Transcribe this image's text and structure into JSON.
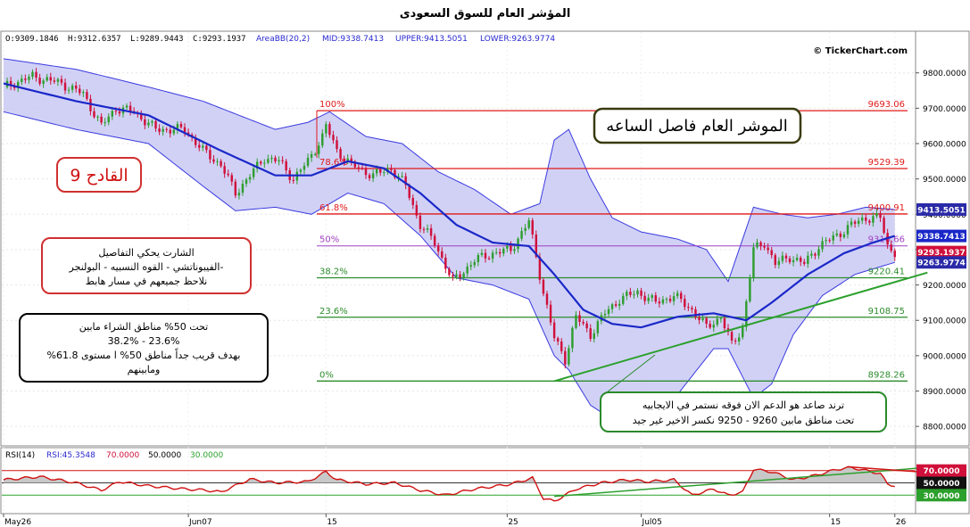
{
  "page": {
    "title": "المؤشر العام للسوق السعودى",
    "watermark": "© TickerChart.com"
  },
  "info": {
    "o": "O:9309.1846",
    "h": "H:9312.6357",
    "l": "L:9289.9443",
    "c": "C:9293.1937",
    "bb_label": "AreaBB(20,2)",
    "mid": "MID:9338.7413",
    "upper": "UPPER:9413.5051",
    "lower": "LOWER:9263.9774"
  },
  "rsi_info": {
    "label": "RSI(14)",
    "value": "RSI:45.3548",
    "l70": "70.0000",
    "l50": "50.0000",
    "l30": "30.0000"
  },
  "colors": {
    "up": "#2e9e2e",
    "down": "#d0103a",
    "band_fill": "#c9c9f5",
    "band_line": "#3a3ae0",
    "mid_line": "#1a28c8",
    "fib_red": "#e01a1a",
    "fib_purple": "#a040c0",
    "fib_green": "#2c8c2c",
    "trend": "#2ca02c",
    "rsi_line": "#d01010",
    "rsi_fill": "#c8c8c8"
  },
  "annotations": {
    "box_title": "الموشر العام فاصل الساعه",
    "qadeh": "القادح 9",
    "note1": [
      "الشارت يحكي التفاصيل",
      "-الفيبوناتشي - القوه النسبيه - البولنجر",
      "نلاحظ جميعهم في مسار هابط"
    ],
    "note2": [
      "تحت 50% مناطق الشراء مابين",
      "38.2% - 23.6%",
      "بهدف قريب جداً مناطق 50% ا مستوى 61.8%",
      "ومابينهم"
    ],
    "note3": [
      "ترند صاعد هو الدعم الان فوقه نستمر في الايجابيه",
      "تحت مناطق مابين 9260 - 9250 نكسر الاخير غير جيد"
    ]
  },
  "fib_levels": [
    {
      "pct": "100%",
      "value": "9693.06",
      "price": 9693.06,
      "kind": "red"
    },
    {
      "pct": "78.6%",
      "value": "9529.39",
      "price": 9529.39,
      "kind": "red"
    },
    {
      "pct": "61.8%",
      "value": "9400.91",
      "price": 9400.91,
      "kind": "red"
    },
    {
      "pct": "50%",
      "value": "9310.66",
      "price": 9310.66,
      "kind": "purple"
    },
    {
      "pct": "38.2%",
      "value": "9220.41",
      "price": 9220.41,
      "kind": "green"
    },
    {
      "pct": "23.6%",
      "value": "9108.75",
      "price": 9108.75,
      "kind": "green"
    },
    {
      "pct": "0%",
      "value": "8928.26",
      "price": 8928.26,
      "kind": "green"
    }
  ],
  "price_tags": [
    {
      "value": "9413.5051",
      "price": 9413.5051,
      "color": "#2a2aa8"
    },
    {
      "value": "9338.7413",
      "price": 9338.7413,
      "color": "#1a28c8"
    },
    {
      "value": "9293.1937",
      "price": 9293.1937,
      "color": "#d0103a"
    },
    {
      "value": "9263.9774",
      "price": 9263.9774,
      "color": "#2a2aa8"
    }
  ],
  "rsi_tags": [
    {
      "value": "70.0000",
      "level": 70,
      "color": "#d0103a"
    },
    {
      "value": "50.0000",
      "level": 50,
      "color": "#111111"
    },
    {
      "value": "30.0000",
      "level": 30,
      "color": "#2ca02c"
    }
  ],
  "chart_data": {
    "type": "candlestick",
    "title": "المؤشر العام للسوق السعودى",
    "ylim": [
      8750,
      9880
    ],
    "yticks": [
      8800,
      8900,
      9000,
      9100,
      9200,
      9300,
      9400,
      9500,
      9600,
      9700,
      9800
    ],
    "ytick_labels": [
      "8800.0000",
      "8900.0000",
      "9000.0000",
      "9100.0000",
      "9200.0000",
      "9300.0000",
      "9400.0000",
      "9500.0000",
      "9600.0000",
      "9700.0000",
      "9800.0000"
    ],
    "x_labels": [
      {
        "label": "May26",
        "bar": 0
      },
      {
        "label": "Jun07",
        "bar": 51
      },
      {
        "label": "15",
        "bar": 89
      },
      {
        "label": "25",
        "bar": 139
      },
      {
        "label": "Jul05",
        "bar": 176
      },
      {
        "label": "15",
        "bar": 228
      },
      {
        "label": "26",
        "bar": 246
      }
    ],
    "close_path": [
      [
        0,
        9760
      ],
      [
        8,
        9790
      ],
      [
        16,
        9770
      ],
      [
        22,
        9740
      ],
      [
        27,
        9650
      ],
      [
        31,
        9700
      ],
      [
        36,
        9690
      ],
      [
        42,
        9640
      ],
      [
        50,
        9640
      ],
      [
        55,
        9580
      ],
      [
        60,
        9540
      ],
      [
        64,
        9460
      ],
      [
        68,
        9510
      ],
      [
        72,
        9560
      ],
      [
        76,
        9550
      ],
      [
        80,
        9500
      ],
      [
        84,
        9550
      ],
      [
        88,
        9620
      ],
      [
        89,
        9650
      ],
      [
        92,
        9580
      ],
      [
        96,
        9540
      ],
      [
        102,
        9510
      ],
      [
        107,
        9530
      ],
      [
        111,
        9480
      ],
      [
        115,
        9370
      ],
      [
        119,
        9320
      ],
      [
        124,
        9210
      ],
      [
        130,
        9270
      ],
      [
        135,
        9290
      ],
      [
        140,
        9300
      ],
      [
        145,
        9380
      ],
      [
        149,
        9180
      ],
      [
        152,
        9050
      ],
      [
        155,
        8990
      ],
      [
        158,
        9110
      ],
      [
        162,
        9060
      ],
      [
        166,
        9120
      ],
      [
        170,
        9160
      ],
      [
        175,
        9180
      ],
      [
        180,
        9150
      ],
      [
        185,
        9170
      ],
      [
        190,
        9130
      ],
      [
        194,
        9080
      ],
      [
        198,
        9110
      ],
      [
        201,
        9030
      ],
      [
        204,
        9080
      ],
      [
        207,
        9300
      ],
      [
        210,
        9320
      ],
      [
        213,
        9260
      ],
      [
        217,
        9280
      ],
      [
        221,
        9260
      ],
      [
        225,
        9310
      ],
      [
        230,
        9340
      ],
      [
        234,
        9370
      ],
      [
        238,
        9390
      ],
      [
        242,
        9390
      ],
      [
        244,
        9310
      ],
      [
        246,
        9293
      ]
    ],
    "bollinger": {
      "period": 20,
      "std": 2,
      "mid": [
        [
          0,
          9770
        ],
        [
          20,
          9720
        ],
        [
          40,
          9680
        ],
        [
          60,
          9580
        ],
        [
          75,
          9510
        ],
        [
          85,
          9510
        ],
        [
          95,
          9550
        ],
        [
          105,
          9530
        ],
        [
          115,
          9460
        ],
        [
          125,
          9370
        ],
        [
          135,
          9320
        ],
        [
          145,
          9310
        ],
        [
          152,
          9230
        ],
        [
          160,
          9130
        ],
        [
          168,
          9090
        ],
        [
          176,
          9080
        ],
        [
          186,
          9110
        ],
        [
          196,
          9120
        ],
        [
          205,
          9100
        ],
        [
          212,
          9150
        ],
        [
          222,
          9230
        ],
        [
          232,
          9290
        ],
        [
          240,
          9320
        ],
        [
          246,
          9338.74
        ]
      ],
      "upper": [
        [
          0,
          9840
        ],
        [
          20,
          9810
        ],
        [
          40,
          9760
        ],
        [
          55,
          9720
        ],
        [
          65,
          9680
        ],
        [
          75,
          9640
        ],
        [
          84,
          9660
        ],
        [
          90,
          9690
        ],
        [
          100,
          9620
        ],
        [
          110,
          9600
        ],
        [
          120,
          9520
        ],
        [
          130,
          9470
        ],
        [
          140,
          9400
        ],
        [
          148,
          9430
        ],
        [
          152,
          9610
        ],
        [
          156,
          9640
        ],
        [
          162,
          9500
        ],
        [
          168,
          9390
        ],
        [
          176,
          9350
        ],
        [
          186,
          9330
        ],
        [
          194,
          9300
        ],
        [
          200,
          9210
        ],
        [
          207,
          9420
        ],
        [
          215,
          9400
        ],
        [
          222,
          9390
        ],
        [
          230,
          9400
        ],
        [
          238,
          9420
        ],
        [
          246,
          9413.51
        ]
      ],
      "lower": [
        [
          0,
          9690
        ],
        [
          20,
          9640
        ],
        [
          40,
          9600
        ],
        [
          55,
          9480
        ],
        [
          64,
          9410
        ],
        [
          75,
          9420
        ],
        [
          85,
          9400
        ],
        [
          95,
          9460
        ],
        [
          105,
          9430
        ],
        [
          115,
          9340
        ],
        [
          125,
          9220
        ],
        [
          135,
          9200
        ],
        [
          145,
          9160
        ],
        [
          152,
          9000
        ],
        [
          156,
          8960
        ],
        [
          162,
          8860
        ],
        [
          168,
          8820
        ],
        [
          176,
          8830
        ],
        [
          186,
          8890
        ],
        [
          196,
          9020
        ],
        [
          200,
          9020
        ],
        [
          207,
          8880
        ],
        [
          212,
          8920
        ],
        [
          218,
          9060
        ],
        [
          226,
          9170
        ],
        [
          235,
          9230
        ],
        [
          246,
          9263.98
        ]
      ]
    },
    "trendlines": [
      {
        "from": [
          152,
          8928
        ],
        "to": [
          255,
          9235
        ]
      }
    ],
    "rsi": {
      "ylim": [
        0,
        100
      ],
      "levels": [
        70,
        50,
        30
      ],
      "values": [
        [
          0,
          55
        ],
        [
          10,
          60
        ],
        [
          20,
          50
        ],
        [
          27,
          38
        ],
        [
          32,
          52
        ],
        [
          40,
          45
        ],
        [
          50,
          40
        ],
        [
          56,
          38
        ],
        [
          60,
          35
        ],
        [
          68,
          56
        ],
        [
          75,
          50
        ],
        [
          84,
          52
        ],
        [
          89,
          68
        ],
        [
          92,
          55
        ],
        [
          100,
          48
        ],
        [
          108,
          50
        ],
        [
          115,
          38
        ],
        [
          122,
          30
        ],
        [
          130,
          40
        ],
        [
          140,
          48
        ],
        [
          146,
          58
        ],
        [
          149,
          25
        ],
        [
          152,
          20
        ],
        [
          158,
          40
        ],
        [
          165,
          50
        ],
        [
          172,
          55
        ],
        [
          178,
          52
        ],
        [
          185,
          55
        ],
        [
          190,
          30
        ],
        [
          196,
          40
        ],
        [
          200,
          30
        ],
        [
          204,
          35
        ],
        [
          207,
          72
        ],
        [
          212,
          68
        ],
        [
          218,
          55
        ],
        [
          224,
          62
        ],
        [
          230,
          72
        ],
        [
          234,
          75
        ],
        [
          238,
          70
        ],
        [
          242,
          65
        ],
        [
          244,
          48
        ],
        [
          246,
          45.35
        ]
      ],
      "trendlines": [
        {
          "from": [
            152,
            28
          ],
          "to": [
            255,
            75
          ]
        },
        {
          "from": [
            233,
            76
          ],
          "to": [
            255,
            67
          ]
        }
      ]
    }
  }
}
